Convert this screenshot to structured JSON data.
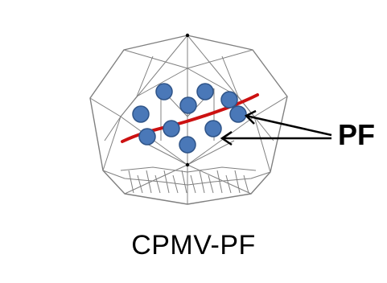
{
  "annotation": {
    "label": "PF"
  },
  "caption": {
    "text": "CPMV-PF"
  },
  "particle": {
    "count": 10
  },
  "colors": {
    "outline": "#808080",
    "particle_fill": "#4a78b8",
    "particle_stroke": "#2f5488",
    "strand": "#cc1111",
    "arrow": "#000000"
  }
}
